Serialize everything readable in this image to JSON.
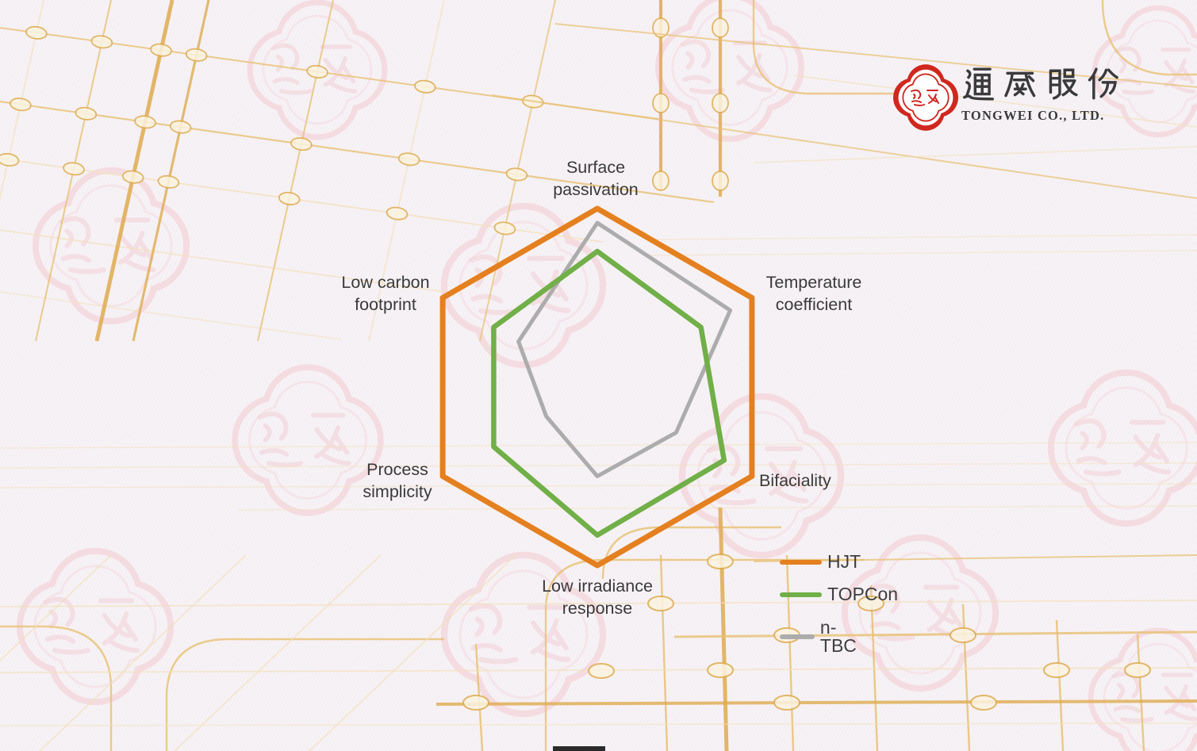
{
  "logo": {
    "chinese_name": "通威股份",
    "english_name": "TONGWEI CO., LTD.",
    "emblem_color": "#D0271F",
    "text_color": "#3A3A3C"
  },
  "chart_data": {
    "type": "radar",
    "axes": [
      "Surface passivation",
      "Temperature coefficient",
      "Bifaciality",
      "Low irradiance response",
      "Process simplicity",
      "Low carbon footprint"
    ],
    "scale_max": 1.0,
    "grid": "off",
    "legend_position": "bottom-right",
    "series": [
      {
        "name": "HJT",
        "color": "#E4801F",
        "values": [
          1.0,
          1.0,
          1.0,
          1.0,
          1.0,
          1.0
        ]
      },
      {
        "name": "TOPCon",
        "color": "#71AF48",
        "values": [
          0.76,
          0.67,
          0.82,
          0.83,
          0.67,
          0.67
        ]
      },
      {
        "name": "n-TBC",
        "color": "#ACACAC",
        "values": [
          0.92,
          0.86,
          0.51,
          0.5,
          0.33,
          0.51
        ]
      }
    ]
  },
  "background": {
    "base_color": "#F6F3F6",
    "circuit_gold": "#E8C173",
    "watermark_pink": "#F6DADF"
  }
}
